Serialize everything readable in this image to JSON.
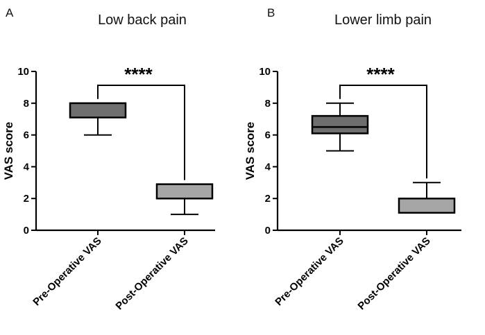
{
  "chart_data": [
    {
      "type": "box",
      "panel": "A",
      "title": "Low back pain",
      "ylabel": "VAS score",
      "ylim": [
        0,
        10
      ],
      "yticks": [
        "0",
        "2",
        "4",
        "6",
        "8",
        "10"
      ],
      "categories": [
        "Pre-Operative VAS",
        "Post-Operative VAS"
      ],
      "boxes": [
        {
          "category": "Pre-Operative VAS",
          "min": 6,
          "q1": 7.1,
          "median": 8,
          "q3": 8,
          "max": 8,
          "color": "#6e6e6e"
        },
        {
          "category": "Post-Operative VAS",
          "min": 1,
          "q1": 2,
          "median": 2,
          "q3": 2.9,
          "max": 2.9,
          "color": "#a6a6a6"
        }
      ],
      "significance": "****"
    },
    {
      "type": "box",
      "panel": "B",
      "title": "Lower limb pain",
      "ylabel": "VAS score",
      "ylim": [
        0,
        10
      ],
      "yticks": [
        "0",
        "2",
        "4",
        "6",
        "8",
        "10"
      ],
      "categories": [
        "Pre-Operative VAS",
        "Post-Operative VAS"
      ],
      "boxes": [
        {
          "category": "Pre-Operative VAS",
          "min": 5,
          "q1": 6.1,
          "median": 6.5,
          "q3": 7.2,
          "max": 8,
          "color": "#6e6e6e"
        },
        {
          "category": "Post-Operative VAS",
          "min": 1.1,
          "q1": 1.1,
          "median": 2,
          "q3": 2,
          "max": 3,
          "color": "#a6a6a6"
        }
      ],
      "significance": "****"
    }
  ]
}
